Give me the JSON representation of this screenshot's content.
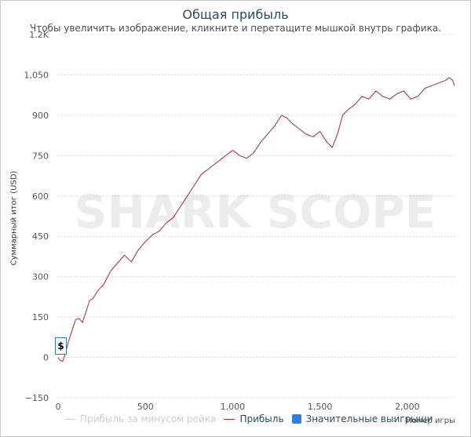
{
  "chart_data": {
    "type": "line",
    "title": "Общая прибыль",
    "subtitle": "Чтобы увеличить изображение, кликните и перетащите мышкой внутрь графика.",
    "ylabel": "Суммарный итог (USD)",
    "xlabel": "Номер игры",
    "xlim": [
      0,
      2275
    ],
    "ylim": [
      -150,
      1200
    ],
    "y_ticks": [
      -150,
      0,
      150,
      300,
      450,
      600,
      750,
      900,
      1050,
      1200
    ],
    "y_tick_labels": [
      "−150",
      "0",
      "150",
      "300",
      "450",
      "600",
      "750",
      "900",
      "1,050",
      "1.2K"
    ],
    "x_ticks": [
      0,
      500,
      1000,
      1500,
      2000
    ],
    "x_tick_labels": [
      "0",
      "500",
      "1,000",
      "1,500",
      "2,000"
    ],
    "grid": "horizontal-dashed",
    "legend_position": "bottom",
    "watermark": "SHARK SCOPE",
    "badge_label": "$",
    "series": [
      {
        "name": "Прибыль",
        "color": "#a52a2a",
        "x": [
          0,
          10,
          25,
          40,
          60,
          80,
          100,
          120,
          140,
          160,
          180,
          200,
          230,
          260,
          300,
          340,
          380,
          420,
          460,
          500,
          540,
          580,
          620,
          660,
          700,
          740,
          780,
          820,
          860,
          900,
          940,
          980,
          1000,
          1040,
          1080,
          1120,
          1160,
          1200,
          1240,
          1280,
          1310,
          1340,
          1380,
          1420,
          1460,
          1500,
          1540,
          1570,
          1600,
          1630,
          1660,
          1700,
          1740,
          1780,
          1820,
          1860,
          1900,
          1940,
          1980,
          2020,
          2060,
          2100,
          2140,
          2180,
          2220,
          2240,
          2260,
          2270
        ],
        "values": [
          0,
          -10,
          -15,
          10,
          60,
          100,
          140,
          145,
          130,
          170,
          210,
          220,
          250,
          270,
          320,
          350,
          380,
          355,
          400,
          430,
          455,
          470,
          500,
          520,
          560,
          600,
          640,
          680,
          700,
          720,
          740,
          760,
          770,
          750,
          740,
          760,
          800,
          830,
          860,
          900,
          890,
          870,
          850,
          830,
          820,
          840,
          800,
          780,
          830,
          900,
          920,
          940,
          970,
          960,
          990,
          970,
          960,
          980,
          990,
          960,
          970,
          1000,
          1010,
          1020,
          1030,
          1040,
          1030,
          1010
        ]
      }
    ],
    "legend_items": [
      {
        "label": "Прибыль за минусом рейка",
        "color": "#cccccc",
        "kind": "line",
        "hidden": true
      },
      {
        "label": "Прибыль",
        "color": "#a52a2a",
        "kind": "line",
        "hidden": false
      },
      {
        "label": "Значительные выигрыши",
        "color": "#2f7ed8",
        "kind": "square",
        "hidden": false
      }
    ]
  }
}
